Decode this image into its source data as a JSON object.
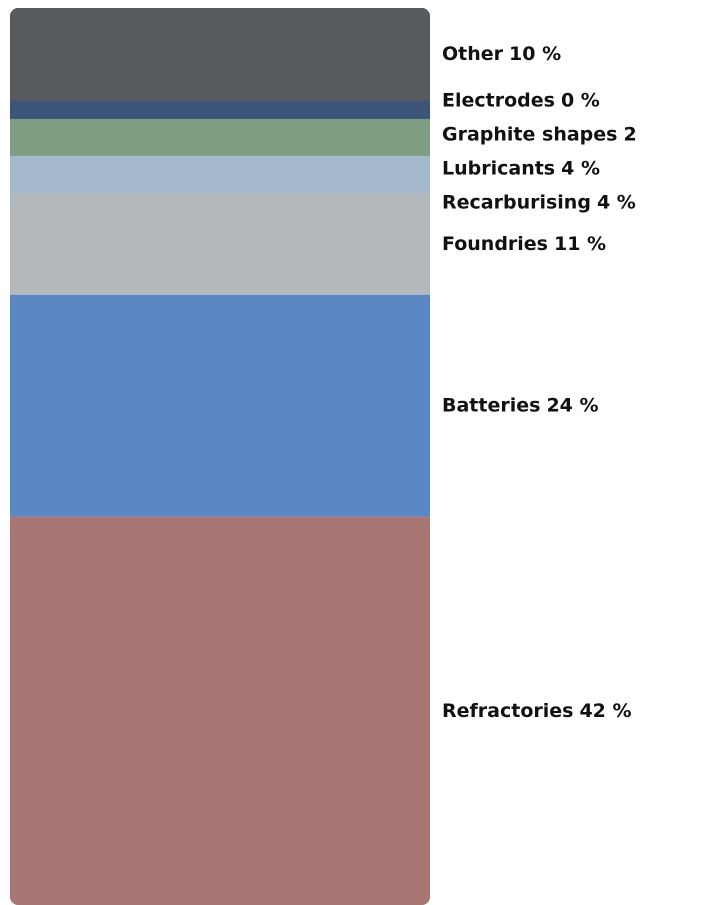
{
  "chart_data": {
    "type": "stacked_bar",
    "series": [
      {
        "name": "Refractories",
        "color": "#a87673",
        "values": [
          42
        ],
        "value_labels": [
          "42 %"
        ]
      },
      {
        "name": "Batteries",
        "color": "#5b87c5",
        "values": [
          24
        ],
        "value_labels": [
          "24 %"
        ]
      },
      {
        "name": "Foundries",
        "color": "#b3b8bc",
        "values": [
          11
        ],
        "value_labels": [
          "11 %"
        ]
      },
      {
        "name": "Recarburising",
        "color": "#a5b9cc",
        "values": [
          4
        ],
        "value_labels": [
          "4 %"
        ]
      },
      {
        "name": "Lubricants",
        "color": "#7f9e84",
        "values": [
          4
        ],
        "value_labels": [
          "4 %"
        ]
      },
      {
        "name": "Graphite shapes",
        "color": "#3c5578",
        "values": [
          2
        ],
        "value_labels": [
          "2"
        ]
      },
      {
        "name": "Electrodes",
        "color": "#d4714a",
        "values": [
          0
        ],
        "value_labels": [
          "0 %"
        ]
      },
      {
        "name": "Other",
        "color": "#575b5e",
        "values": [
          10
        ],
        "value_labels": [
          "10 %"
        ]
      }
    ],
    "ylim": [
      0,
      97
    ]
  }
}
